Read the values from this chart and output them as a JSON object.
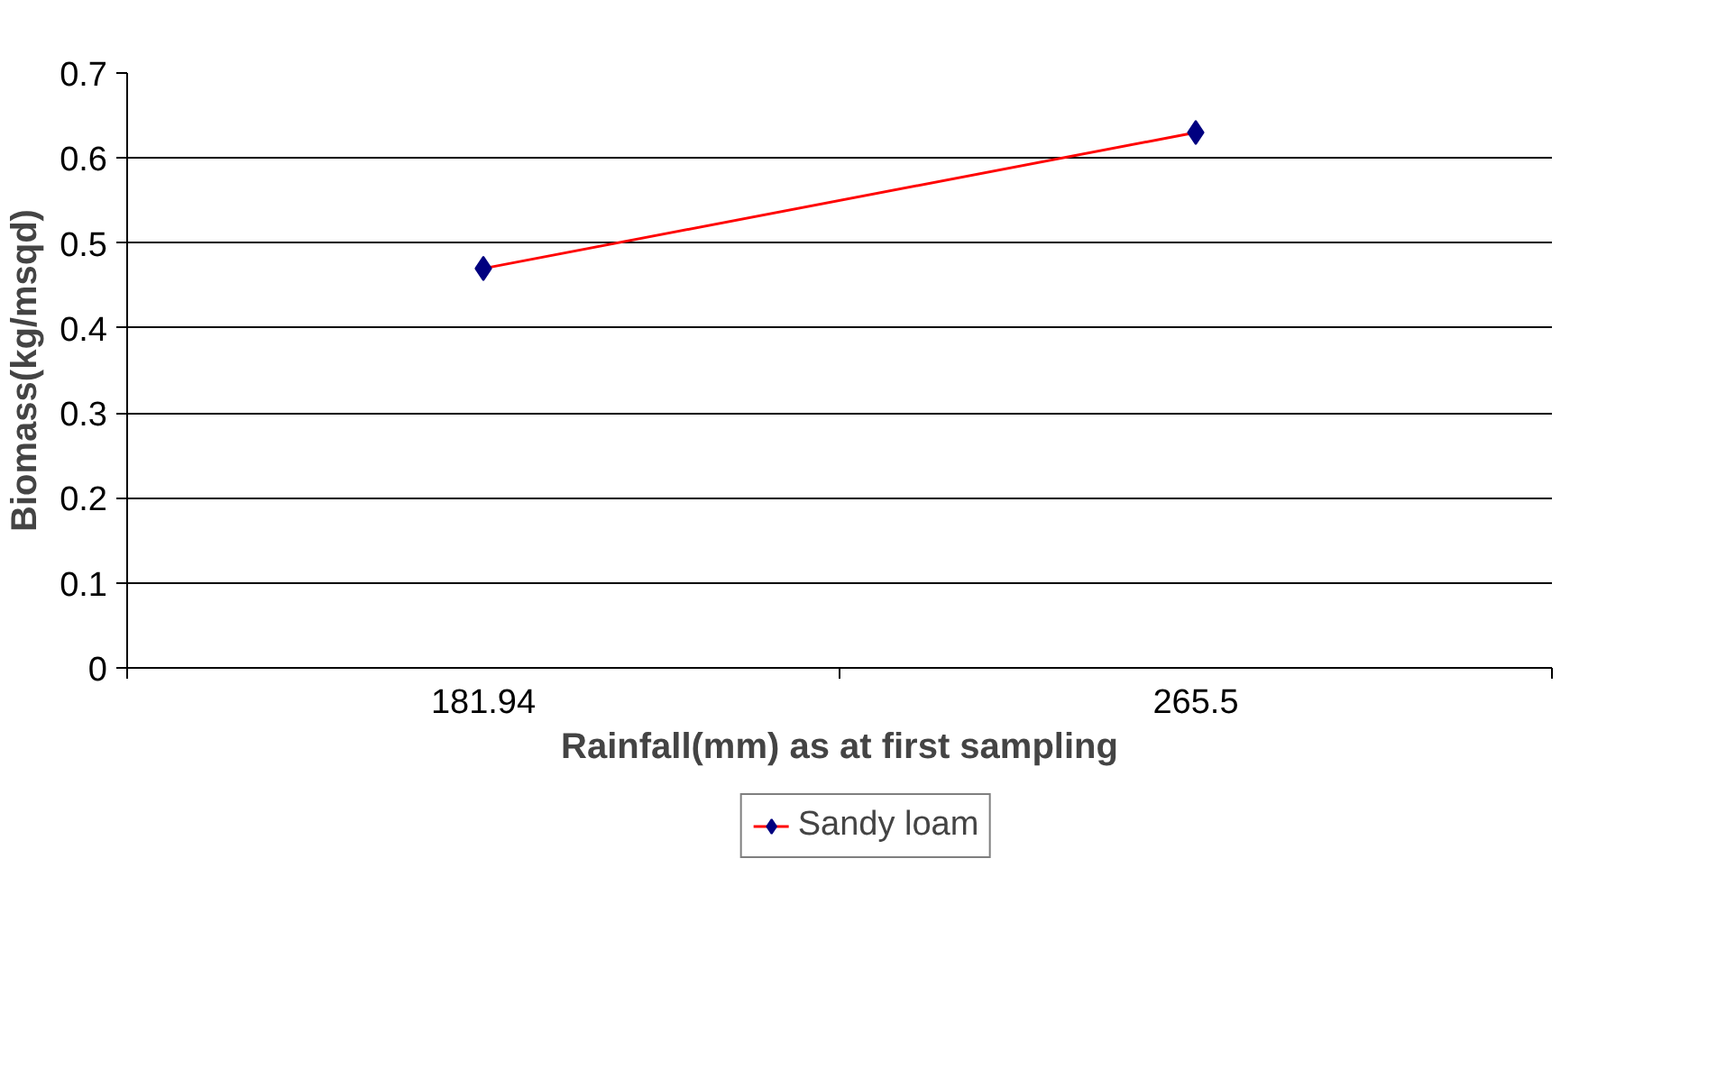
{
  "chart_data": {
    "type": "line",
    "xlabel": "Rainfall(mm) as at first sampling",
    "ylabel": "Biomass(kg/msqd)",
    "categories": [
      "181.94",
      "265.5"
    ],
    "series": [
      {
        "name": "Sandy loam",
        "color": "#ff0000",
        "colors": [
          "#000080",
          "#000080"
        ],
        "values": [
          0.47,
          0.63
        ]
      }
    ],
    "ylim": [
      0,
      0.7
    ],
    "yticks": [
      0,
      0.1,
      0.2,
      0.3,
      0.4,
      0.5,
      0.6,
      0.7
    ],
    "grid": "y",
    "legend": "bottom",
    "marker": "diamond",
    "line_style": "solid"
  }
}
